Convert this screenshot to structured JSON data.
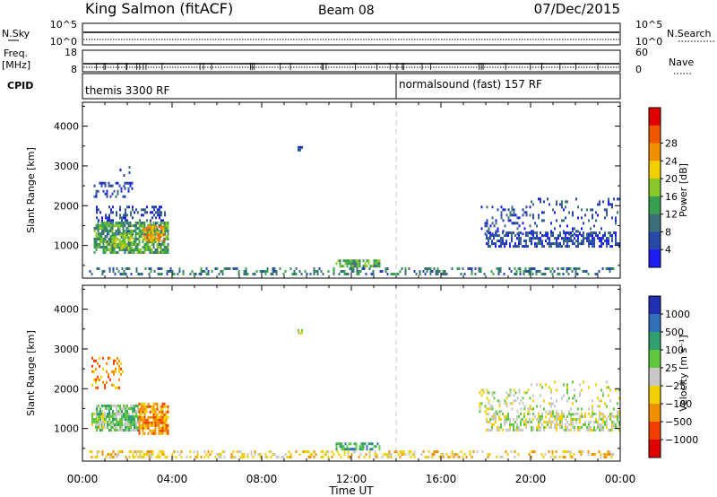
{
  "header": {
    "station": "King Salmon (fitACF)",
    "beam": "Beam 08",
    "date": "07/Dec/2015"
  },
  "top_panels": {
    "nsky": {
      "label": "N.Sky",
      "right_label": "N.Search",
      "left_ticks": [
        "10^5",
        "10^0"
      ],
      "right_ticks": [
        "10^5",
        "10^0"
      ]
    },
    "freq": {
      "label_line1": "Freq.",
      "label_line2": "[MHz]",
      "right_label": "Nave",
      "left_ticks": [
        "18",
        "8"
      ],
      "right_ticks": [
        "60",
        "0"
      ]
    },
    "cpid": {
      "label": "CPID",
      "segments": [
        {
          "text": "themis 3300 RF",
          "start_hour": 0
        },
        {
          "text": "normalsound (fast) 157 RF",
          "start_hour": 14
        }
      ]
    }
  },
  "chart_data": [
    {
      "type": "heatmap",
      "name": "power",
      "ylabel": "Slant Range [km]",
      "xlim": [
        0,
        24
      ],
      "ylim": [
        180,
        4600
      ],
      "y_ticks": [
        1000,
        2000,
        3000,
        4000
      ],
      "colorbar": {
        "label": "Power [dB]",
        "ticks": [
          "4",
          "8",
          "12",
          "16",
          "20",
          "24",
          "28"
        ],
        "colors": [
          "#1c1cf0",
          "#2848a8",
          "#3c7078",
          "#38a050",
          "#88c828",
          "#f0d000",
          "#f09000",
          "#f05800",
          "#e00000"
        ]
      },
      "regions": [
        {
          "x": [
            0.5,
            2.2
          ],
          "y": [
            2200,
            2600
          ],
          "level": 1,
          "density": 0.35
        },
        {
          "x": [
            1.5,
            2.3
          ],
          "y": [
            2500,
            3000
          ],
          "level": 1,
          "density": 0.12
        },
        {
          "x": [
            0.6,
            3.7
          ],
          "y": [
            1300,
            2000
          ],
          "level": 1,
          "density": 0.35
        },
        {
          "x": [
            0.5,
            3.8
          ],
          "y": [
            850,
            1600
          ],
          "level": 3,
          "density": 0.75
        },
        {
          "x": [
            2.7,
            3.6
          ],
          "y": [
            1100,
            1500
          ],
          "level": 6,
          "density": 0.7
        },
        {
          "x": [
            1.3,
            2.2
          ],
          "y": [
            900,
            1300
          ],
          "level": 4,
          "density": 0.5
        },
        {
          "x": [
            11.3,
            13.3
          ],
          "y": [
            500,
            650
          ],
          "level": 3,
          "density": 0.65
        },
        {
          "x": [
            0.3,
            23.7
          ],
          "y": [
            280,
            450
          ],
          "level": 2,
          "density": 0.35
        },
        {
          "x": [
            18.0,
            24.0
          ],
          "y": [
            950,
            1350
          ],
          "level": 1,
          "density": 0.55
        },
        {
          "x": [
            17.7,
            20.0
          ],
          "y": [
            1300,
            2000
          ],
          "level": 1,
          "density": 0.2
        },
        {
          "x": [
            20.0,
            24.0
          ],
          "y": [
            1300,
            2200
          ],
          "level": 1,
          "density": 0.12
        },
        {
          "x": [
            9.6,
            9.8
          ],
          "y": [
            3400,
            3500
          ],
          "level": 1,
          "density": 0.6
        }
      ]
    },
    {
      "type": "heatmap",
      "name": "velocity",
      "ylabel": "Slant Range [km]",
      "xlim": [
        0,
        24
      ],
      "ylim": [
        180,
        4600
      ],
      "y_ticks": [
        1000,
        2000,
        3000,
        4000
      ],
      "colorbar": {
        "label": "Velocity [m s⁻¹]",
        "ticks": [
          "1000",
          "500",
          "100",
          "25",
          "−25",
          "−100",
          "−500",
          "−1000"
        ],
        "colors": [
          "#2030b0",
          "#3070b8",
          "#30a070",
          "#60c840",
          "#c8c8c8",
          "#f0d000",
          "#f09000",
          "#f04000",
          "#e00000"
        ]
      },
      "regions": [
        {
          "x": [
            0.6,
            2.5
          ],
          "y": [
            950,
            1600
          ],
          "level": 3,
          "density": 0.75
        },
        {
          "x": [
            2.5,
            3.8
          ],
          "y": [
            900,
            1650
          ],
          "level": 6,
          "density": 0.8
        },
        {
          "x": [
            0.4,
            1.0
          ],
          "y": [
            1000,
            1400
          ],
          "level": 4,
          "density": 0.6
        },
        {
          "x": [
            0.4,
            1.8
          ],
          "y": [
            2000,
            2800
          ],
          "level": 6,
          "density": 0.25
        },
        {
          "x": [
            11.3,
            13.3
          ],
          "y": [
            500,
            650
          ],
          "level": 2,
          "density": 0.65
        },
        {
          "x": [
            0.3,
            23.7
          ],
          "y": [
            280,
            450
          ],
          "level": 5,
          "density": 0.35
        },
        {
          "x": [
            18.0,
            24.0
          ],
          "y": [
            950,
            1400
          ],
          "level": 4,
          "density": 0.55
        },
        {
          "x": [
            17.7,
            20.0
          ],
          "y": [
            1400,
            2000
          ],
          "level": 4,
          "density": 0.25
        },
        {
          "x": [
            20.0,
            24.0
          ],
          "y": [
            1300,
            2200
          ],
          "level": 4,
          "density": 0.12
        },
        {
          "x": [
            9.6,
            9.8
          ],
          "y": [
            3400,
            3500
          ],
          "level": 4,
          "density": 0.6
        }
      ]
    }
  ],
  "time_axis": {
    "label": "Time UT",
    "ticks": [
      "00:00",
      "04:00",
      "08:00",
      "12:00",
      "16:00",
      "20:00",
      "00:00"
    ]
  }
}
